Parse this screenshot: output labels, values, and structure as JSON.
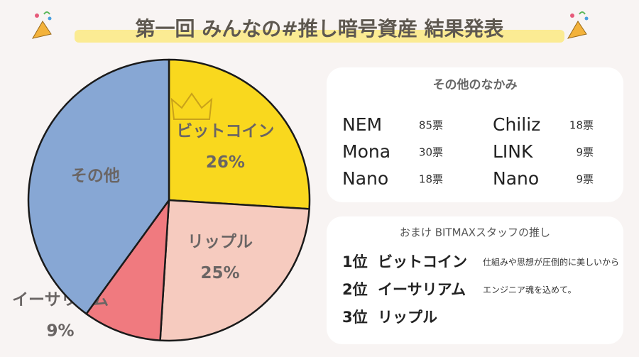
{
  "chart_data": {
    "type": "pie",
    "title": "第一回 みんなの#推し暗号資産 結果発表",
    "categories": [
      "ビットコイン",
      "リップル",
      "イーサリアム",
      "その他"
    ],
    "values": [
      26,
      25,
      9,
      40
    ],
    "value_labels": [
      "26%",
      "25%",
      "9%",
      null
    ],
    "colors": [
      "#f9d81e",
      "#f6cbbf",
      "#f07a7f",
      "#87a7d4"
    ]
  },
  "other_contents": {
    "title": "その他のなかみ",
    "items": [
      {
        "name": "NEM",
        "votes": "85票"
      },
      {
        "name": "Mona",
        "votes": "30票"
      },
      {
        "name": "Nano",
        "votes": "18票"
      },
      {
        "name": "Chiliz",
        "votes": "18票"
      },
      {
        "name": "LINK",
        "votes": "9票"
      },
      {
        "name": "Nano",
        "votes": "9票"
      }
    ]
  },
  "staff_picks": {
    "title": "おまけ BITMAXスタッフの推し",
    "items": [
      {
        "rank": "1位",
        "name": "ビットコイン",
        "comment": "仕組みや思想が圧倒的に美しいから"
      },
      {
        "rank": "2位",
        "name": "イーサリアム",
        "comment": "エンジニア魂を込めて。"
      },
      {
        "rank": "3位",
        "name": "リップル"
      }
    ]
  }
}
